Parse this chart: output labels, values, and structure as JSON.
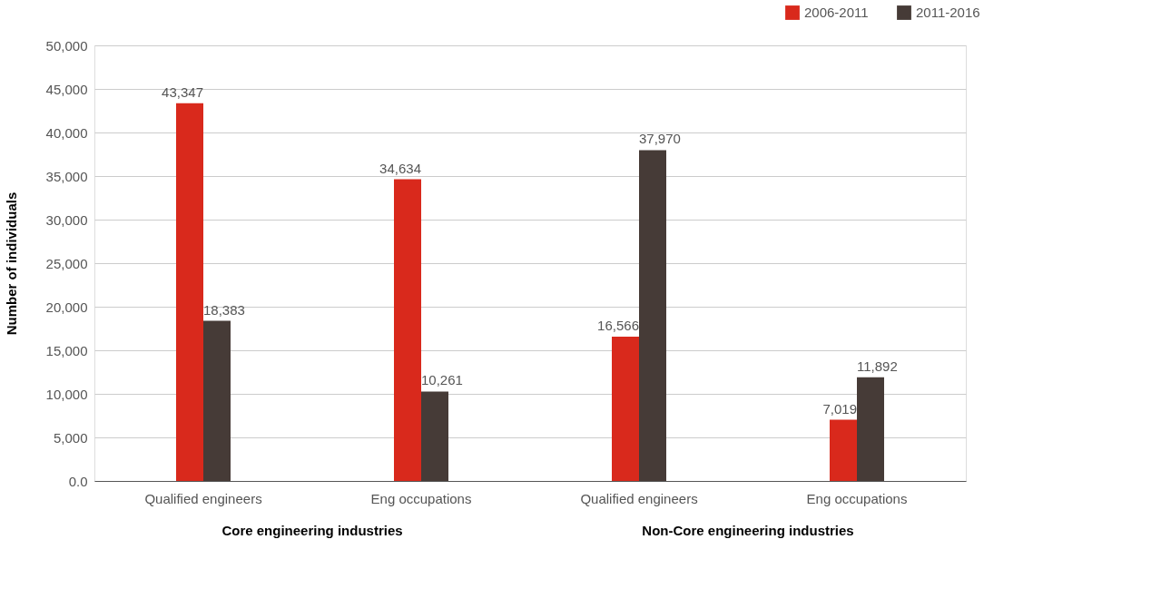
{
  "chart_data": {
    "type": "bar",
    "categories": [
      "Qualified engineers",
      "Eng occupations",
      "Qualified engineers",
      "Eng occupations"
    ],
    "series": [
      {
        "name": "2006-2011",
        "color": "#d9291c",
        "values": [
          43347,
          34634,
          16566,
          7019
        ],
        "value_labels": [
          "43,347",
          "34,634",
          "16,566",
          "7,019"
        ]
      },
      {
        "name": "2011-2016",
        "color": "#463b37",
        "values": [
          18383,
          10261,
          37970,
          11892
        ],
        "value_labels": [
          "18,383",
          "10,261",
          "37,970",
          "11,892"
        ]
      }
    ],
    "ylabel": "Number of individuals",
    "ylim": [
      0,
      50000
    ],
    "yticks": [
      {
        "value": 0,
        "label": "0.0"
      },
      {
        "value": 5000,
        "label": "5,000"
      },
      {
        "value": 10000,
        "label": "10,000"
      },
      {
        "value": 15000,
        "label": "15,000"
      },
      {
        "value": 20000,
        "label": "20,000"
      },
      {
        "value": 25000,
        "label": "25,000"
      },
      {
        "value": 30000,
        "label": "30,000"
      },
      {
        "value": 35000,
        "label": "35,000"
      },
      {
        "value": 40000,
        "label": "40,000"
      },
      {
        "value": 45000,
        "label": "45,000"
      },
      {
        "value": 50000,
        "label": "50,000"
      }
    ],
    "annotations": [
      "Core engineering industries",
      "Non-Core engineering industries"
    ],
    "grid": "y",
    "legend": "top right"
  }
}
